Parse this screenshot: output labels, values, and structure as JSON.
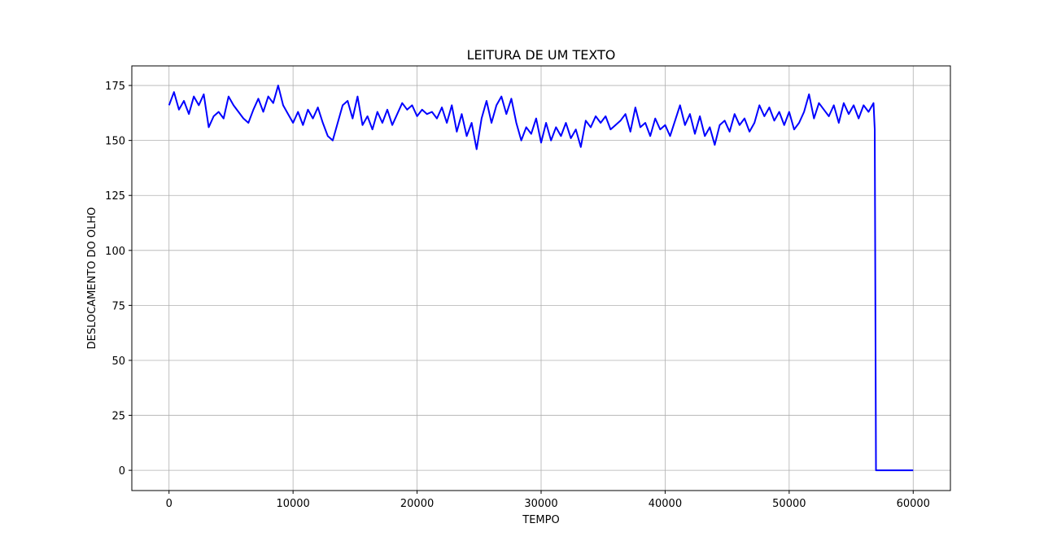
{
  "chart_data": {
    "type": "line",
    "title": "LEITURA DE UM TEXTO",
    "xlabel": "TEMPO",
    "ylabel": "DESLOCAMENTO DO OLHO",
    "xlim": [
      -3000,
      63000
    ],
    "ylim": [
      -9.2,
      183.9
    ],
    "xticks": [
      0,
      10000,
      20000,
      30000,
      40000,
      50000,
      60000
    ],
    "yticks": [
      0,
      25,
      50,
      75,
      100,
      125,
      150,
      175
    ],
    "grid": true,
    "series": [
      {
        "color": "#0000ff",
        "x": [
          0,
          400,
          800,
          1200,
          1600,
          2000,
          2400,
          2800,
          3200,
          3600,
          4000,
          4400,
          4800,
          5200,
          5600,
          6000,
          6400,
          6800,
          7200,
          7600,
          8000,
          8400,
          8800,
          9200,
          9600,
          10000,
          10400,
          10800,
          11200,
          11600,
          12000,
          12400,
          12800,
          13200,
          13600,
          14000,
          14400,
          14800,
          15200,
          15600,
          16000,
          16400,
          16800,
          17200,
          17600,
          18000,
          18400,
          18800,
          19200,
          19600,
          20000,
          20400,
          20800,
          21200,
          21600,
          22000,
          22400,
          22800,
          23200,
          23600,
          24000,
          24400,
          24800,
          25200,
          25600,
          26000,
          26400,
          26800,
          27200,
          27600,
          28000,
          28400,
          28800,
          29200,
          29600,
          30000,
          30400,
          30800,
          31200,
          31600,
          32000,
          32400,
          32800,
          33200,
          33600,
          34000,
          34400,
          34800,
          35200,
          35600,
          36000,
          36400,
          36800,
          37200,
          37600,
          38000,
          38400,
          38800,
          39200,
          39600,
          40000,
          40400,
          40800,
          41200,
          41600,
          42000,
          42400,
          42800,
          43200,
          43600,
          44000,
          44400,
          44800,
          45200,
          45600,
          46000,
          46400,
          46800,
          47200,
          47600,
          48000,
          48400,
          48800,
          49200,
          49600,
          50000,
          50400,
          50800,
          51200,
          51600,
          52000,
          52400,
          52800,
          53200,
          53600,
          54000,
          54400,
          54800,
          55200,
          55600,
          56000,
          56400,
          56800,
          56900,
          57000,
          60000
        ],
        "values": [
          166,
          172,
          164,
          168,
          162,
          170,
          166,
          171,
          156,
          161,
          163,
          160,
          170,
          166,
          163,
          160,
          158,
          164,
          169,
          163,
          170,
          167,
          175,
          166,
          162,
          158,
          163,
          157,
          164,
          160,
          165,
          158,
          152,
          150,
          158,
          166,
          168,
          160,
          170,
          157,
          161,
          155,
          163,
          158,
          164,
          157,
          162,
          167,
          164,
          166,
          161,
          164,
          162,
          163,
          160,
          165,
          158,
          166,
          154,
          162,
          152,
          158,
          146,
          160,
          168,
          158,
          166,
          170,
          162,
          169,
          158,
          150,
          156,
          153,
          160,
          149,
          158,
          150,
          156,
          152,
          158,
          151,
          155,
          147,
          159,
          156,
          161,
          158,
          161,
          155,
          157,
          159,
          162,
          154,
          165,
          156,
          158,
          152,
          160,
          155,
          157,
          152,
          159,
          166,
          157,
          162,
          153,
          161,
          152,
          156,
          148,
          157,
          159,
          154,
          162,
          157,
          160,
          154,
          158,
          166,
          161,
          165,
          159,
          163,
          157,
          163,
          155,
          158,
          163,
          171,
          160,
          167,
          164,
          161,
          166,
          158,
          167,
          162,
          166,
          160,
          166,
          163,
          167,
          155,
          0,
          0
        ]
      }
    ]
  }
}
